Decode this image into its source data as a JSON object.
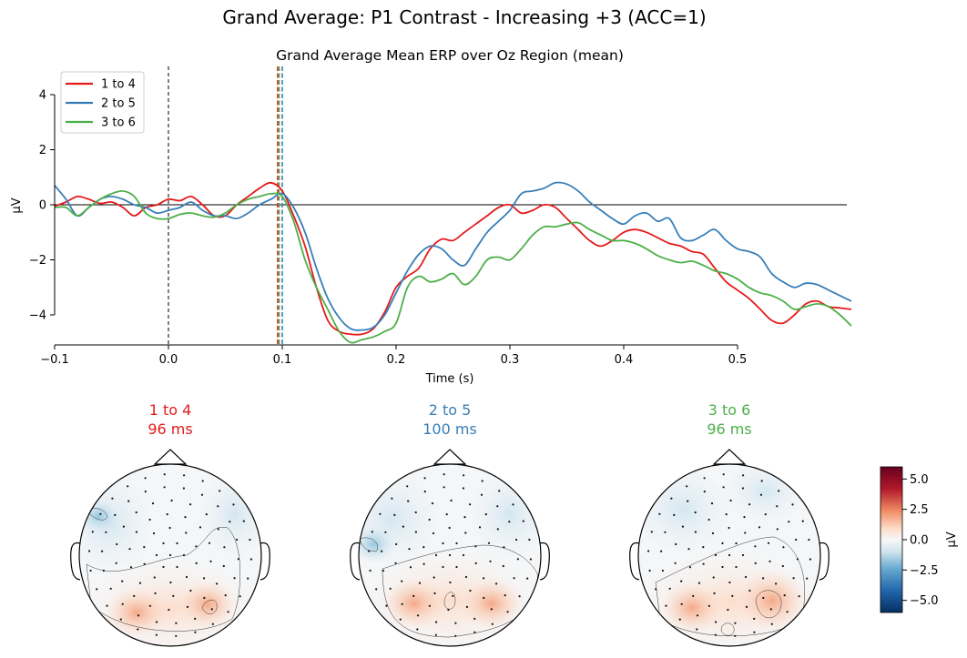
{
  "figure": {
    "suptitle": "Grand Average: P1 Contrast - Increasing +3 (ACC=1)"
  },
  "chart_data": [
    {
      "type": "line",
      "title": "Grand Average Mean ERP over Oz Region (mean)",
      "xlabel": "Time (s)",
      "ylabel": "µV",
      "xlim": [
        -0.1,
        0.6
      ],
      "ylim": [
        -5.1,
        5.0
      ],
      "xticks": [
        -0.1,
        0.0,
        0.1,
        0.2,
        0.3,
        0.4,
        0.5
      ],
      "xtick_labels": [
        "−0.1",
        "0.0",
        "0.1",
        "0.2",
        "0.3",
        "0.4",
        "0.5"
      ],
      "yticks": [
        -4,
        -2,
        0,
        2,
        4
      ],
      "ytick_labels": [
        "−4",
        "−2",
        "0",
        "2",
        "4"
      ],
      "legend_position": "top-left",
      "zero_line": true,
      "event_line_x": 0.0,
      "series": [
        {
          "name": "1 to 4",
          "color": "#e41a1c",
          "peak_time": 0.096,
          "x": [
            -0.1,
            -0.09,
            -0.08,
            -0.07,
            -0.06,
            -0.05,
            -0.04,
            -0.03,
            -0.02,
            -0.01,
            0.0,
            0.01,
            0.02,
            0.03,
            0.04,
            0.05,
            0.06,
            0.07,
            0.08,
            0.09,
            0.1,
            0.11,
            0.12,
            0.13,
            0.14,
            0.15,
            0.16,
            0.17,
            0.18,
            0.19,
            0.2,
            0.21,
            0.22,
            0.23,
            0.24,
            0.25,
            0.26,
            0.27,
            0.28,
            0.29,
            0.3,
            0.31,
            0.32,
            0.33,
            0.34,
            0.35,
            0.36,
            0.37,
            0.38,
            0.39,
            0.4,
            0.41,
            0.42,
            0.43,
            0.44,
            0.45,
            0.46,
            0.47,
            0.48,
            0.49,
            0.5,
            0.51,
            0.52,
            0.53,
            0.54,
            0.55,
            0.56,
            0.57,
            0.58,
            0.59,
            0.6
          ],
          "y": [
            -0.05,
            0.1,
            0.3,
            0.2,
            0.05,
            0.1,
            -0.1,
            -0.4,
            -0.1,
            0.0,
            0.2,
            0.15,
            0.3,
            0.0,
            -0.4,
            -0.4,
            0.0,
            0.3,
            0.6,
            0.8,
            0.5,
            -0.4,
            -1.5,
            -3.0,
            -4.2,
            -4.6,
            -4.7,
            -4.7,
            -4.5,
            -3.9,
            -3.0,
            -2.6,
            -2.3,
            -1.6,
            -1.25,
            -1.3,
            -1.0,
            -0.7,
            -0.4,
            -0.1,
            0.0,
            -0.3,
            -0.2,
            0.0,
            -0.1,
            -0.5,
            -0.9,
            -1.3,
            -1.5,
            -1.3,
            -1.0,
            -0.9,
            -1.0,
            -1.2,
            -1.4,
            -1.5,
            -1.7,
            -1.8,
            -2.3,
            -2.8,
            -3.1,
            -3.4,
            -3.8,
            -4.2,
            -4.3,
            -4.0,
            -3.6,
            -3.5,
            -3.7,
            -3.75,
            -3.8
          ]
        },
        {
          "name": "2 to 5",
          "color": "#377eb8",
          "peak_time": 0.1,
          "x": [
            -0.1,
            -0.09,
            -0.08,
            -0.07,
            -0.06,
            -0.05,
            -0.04,
            -0.03,
            -0.02,
            -0.01,
            0.0,
            0.01,
            0.02,
            0.03,
            0.04,
            0.05,
            0.06,
            0.07,
            0.08,
            0.09,
            0.1,
            0.11,
            0.12,
            0.13,
            0.14,
            0.15,
            0.16,
            0.17,
            0.18,
            0.19,
            0.2,
            0.21,
            0.22,
            0.23,
            0.24,
            0.25,
            0.26,
            0.27,
            0.28,
            0.29,
            0.3,
            0.31,
            0.32,
            0.33,
            0.34,
            0.35,
            0.36,
            0.37,
            0.38,
            0.39,
            0.4,
            0.41,
            0.42,
            0.43,
            0.44,
            0.45,
            0.46,
            0.47,
            0.48,
            0.49,
            0.5,
            0.51,
            0.52,
            0.53,
            0.54,
            0.55,
            0.56,
            0.57,
            0.58,
            0.59,
            0.6
          ],
          "y": [
            0.7,
            0.2,
            -0.4,
            -0.1,
            0.2,
            0.3,
            0.2,
            0.0,
            -0.1,
            -0.3,
            -0.2,
            -0.1,
            0.1,
            -0.2,
            -0.4,
            -0.4,
            -0.5,
            -0.3,
            0.0,
            0.2,
            0.4,
            -0.1,
            -1.0,
            -2.3,
            -3.4,
            -4.1,
            -4.5,
            -4.55,
            -4.45,
            -4.0,
            -3.2,
            -2.4,
            -1.8,
            -1.5,
            -1.6,
            -2.0,
            -2.2,
            -1.6,
            -1.0,
            -0.6,
            -0.2,
            0.4,
            0.5,
            0.6,
            0.8,
            0.75,
            0.5,
            0.1,
            -0.2,
            -0.5,
            -0.7,
            -0.4,
            -0.3,
            -0.6,
            -0.5,
            -1.2,
            -1.3,
            -1.1,
            -0.9,
            -1.3,
            -1.6,
            -1.7,
            -1.9,
            -2.5,
            -2.8,
            -3.0,
            -2.85,
            -2.9,
            -3.1,
            -3.3,
            -3.5
          ]
        },
        {
          "name": "3 to 6",
          "color": "#4daf4a",
          "peak_time": 0.096,
          "x": [
            -0.1,
            -0.09,
            -0.08,
            -0.07,
            -0.06,
            -0.05,
            -0.04,
            -0.03,
            -0.02,
            -0.01,
            0.0,
            0.01,
            0.02,
            0.03,
            0.04,
            0.05,
            0.06,
            0.07,
            0.08,
            0.09,
            0.1,
            0.11,
            0.12,
            0.13,
            0.14,
            0.15,
            0.16,
            0.17,
            0.18,
            0.19,
            0.2,
            0.21,
            0.22,
            0.23,
            0.24,
            0.25,
            0.26,
            0.27,
            0.28,
            0.29,
            0.3,
            0.31,
            0.32,
            0.33,
            0.34,
            0.35,
            0.36,
            0.37,
            0.38,
            0.39,
            0.4,
            0.41,
            0.42,
            0.43,
            0.44,
            0.45,
            0.46,
            0.47,
            0.48,
            0.49,
            0.5,
            0.51,
            0.52,
            0.53,
            0.54,
            0.55,
            0.56,
            0.57,
            0.58,
            0.59,
            0.6
          ],
          "y": [
            -0.1,
            -0.1,
            -0.4,
            -0.1,
            0.2,
            0.4,
            0.5,
            0.3,
            -0.3,
            -0.5,
            -0.5,
            -0.35,
            -0.3,
            -0.4,
            -0.45,
            -0.3,
            0.0,
            0.2,
            0.3,
            0.4,
            0.3,
            -0.6,
            -2.0,
            -3.0,
            -3.8,
            -4.6,
            -5.0,
            -4.9,
            -4.8,
            -4.6,
            -4.3,
            -3.0,
            -2.6,
            -2.8,
            -2.7,
            -2.5,
            -2.9,
            -2.6,
            -2.0,
            -1.9,
            -2.0,
            -1.6,
            -1.1,
            -0.8,
            -0.8,
            -0.7,
            -0.65,
            -0.9,
            -1.1,
            -1.3,
            -1.3,
            -1.4,
            -1.6,
            -1.85,
            -2.0,
            -2.1,
            -2.05,
            -2.2,
            -2.4,
            -2.5,
            -2.7,
            -3.0,
            -3.2,
            -3.3,
            -3.5,
            -3.8,
            -3.7,
            -3.6,
            -3.7,
            -4.0,
            -4.4
          ]
        }
      ]
    },
    {
      "type": "heatmap",
      "subtype": "topomap",
      "colormap": "RdBu_r",
      "colorbar": {
        "label": "µV",
        "range": [
          -6.0,
          6.0
        ],
        "ticks": [
          5.0,
          2.5,
          0.0,
          -2.5,
          -5.0
        ],
        "tick_labels": [
          "5.0",
          "2.5",
          "0.0",
          "−2.5",
          "−5.0"
        ]
      },
      "panels": [
        {
          "title": "1 to 4",
          "time_label": "96 ms",
          "color": "#e41a1c"
        },
        {
          "title": "2 to 5",
          "time_label": "100 ms",
          "color": "#377eb8"
        },
        {
          "title": "3 to 6",
          "time_label": "96 ms",
          "color": "#4daf4a"
        }
      ]
    }
  ]
}
